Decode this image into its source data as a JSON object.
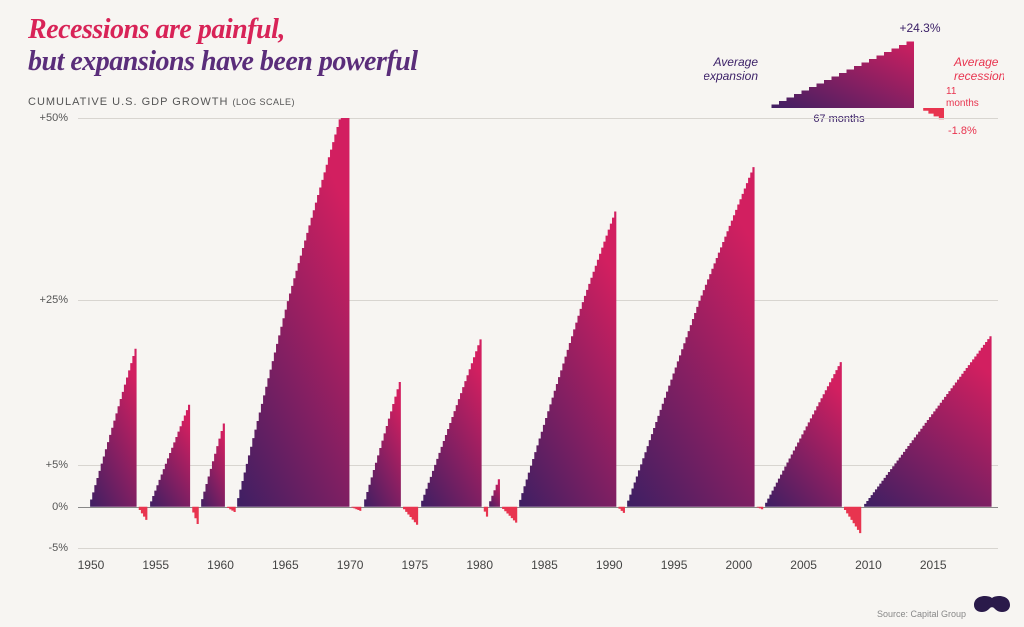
{
  "title": {
    "line1": "Recessions are painful,",
    "line1_color": "#d82357",
    "line2": "but expansions have been powerful",
    "line2_color": "#5a2d7a",
    "fontsize": 28
  },
  "subtitle": {
    "main": "CUMULATIVE U.S. GDP GROWTH",
    "paren": "(LOG SCALE)",
    "color": "#555555"
  },
  "legend": {
    "expansion_label": "Average\nexpansion",
    "expansion_color": "#3c2168",
    "expansion_peak": "+24.3%",
    "expansion_months": "67 months",
    "recession_label": "Average\nrecession",
    "recession_color": "#e8344f",
    "recession_months": "11\nmonths",
    "recession_trough": "-1.8%"
  },
  "chart": {
    "type": "stepped-area",
    "background_color": "#f7f5f2",
    "gridline_color": "#d8d5d0",
    "baseline_color": "#888888",
    "axis_text_color": "#555555",
    "axis_fontsize": 11,
    "x_axis_fontsize": 12,
    "y_ticks": [
      -5,
      0,
      5,
      25,
      50
    ],
    "y_tick_labels": [
      "-5%",
      "0%",
      "+5%",
      "+25%",
      "+50%"
    ],
    "y_tick_positions_pct_from_top": [
      100,
      90.4,
      80.8,
      42.4,
      0
    ],
    "x_range": [
      1949,
      2020
    ],
    "x_ticks": [
      1950,
      1955,
      1960,
      1965,
      1970,
      1975,
      1980,
      1985,
      1990,
      1995,
      2000,
      2005,
      2010,
      2015
    ],
    "expansion_gradient": {
      "from": "#3c1f63",
      "to": "#d21f60"
    },
    "recession_color": "#e8344f",
    "cycles": [
      {
        "start_year": 1949.8,
        "expansion_months": 45,
        "expansion_peak_pct": 20,
        "recession_months": 10,
        "recession_trough_pct": -2.0
      },
      {
        "start_year": 1954.4,
        "expansion_months": 39,
        "expansion_peak_pct": 13,
        "recession_months": 8,
        "recession_trough_pct": -2.8
      },
      {
        "start_year": 1958.3,
        "expansion_months": 24,
        "expansion_peak_pct": 11,
        "recession_months": 10,
        "recession_trough_pct": -0.8
      },
      {
        "start_year": 1961.1,
        "expansion_months": 106,
        "expansion_peak_pct": 55,
        "recession_months": 11,
        "recession_trough_pct": -0.6
      },
      {
        "start_year": 1970.9,
        "expansion_months": 36,
        "expansion_peak_pct": 16,
        "recession_months": 16,
        "recession_trough_pct": -2.5
      },
      {
        "start_year": 1975.3,
        "expansion_months": 58,
        "expansion_peak_pct": 21,
        "recession_months": 6,
        "recession_trough_pct": -1.8
      },
      {
        "start_year": 1980.6,
        "expansion_months": 12,
        "expansion_peak_pct": 4,
        "recession_months": 16,
        "recession_trough_pct": -2.2
      },
      {
        "start_year": 1982.9,
        "expansion_months": 92,
        "expansion_peak_pct": 38,
        "recession_months": 8,
        "recession_trough_pct": -1.0
      },
      {
        "start_year": 1991.2,
        "expansion_months": 120,
        "expansion_peak_pct": 44,
        "recession_months": 8,
        "recession_trough_pct": -0.4
      },
      {
        "start_year": 2001.9,
        "expansion_months": 73,
        "expansion_peak_pct": 18,
        "recession_months": 18,
        "recession_trough_pct": -3.6
      },
      {
        "start_year": 2009.5,
        "expansion_months": 120,
        "expansion_peak_pct": 21,
        "recession_months": 0,
        "recession_trough_pct": 0
      }
    ]
  },
  "source": "Source: Capital Group",
  "logo_color": "#2a1a4a"
}
